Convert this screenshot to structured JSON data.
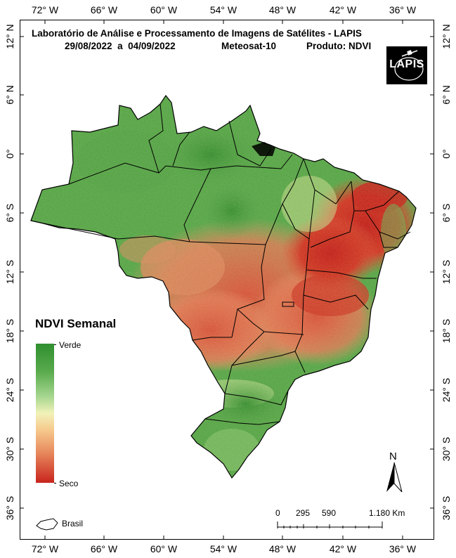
{
  "title": {
    "line1": "Laboratório de Análise e Processamento de Imagens de Satélites - LAPIS",
    "line2_dates": "29/08/2022  a  04/09/2022",
    "line2_sensor": "Meteosat-10",
    "line2_product": "Produto: NDVI"
  },
  "logo_text": "LAPIS",
  "lon_ticks": [
    "72° W",
    "66° W",
    "60° W",
    "54° W",
    "48° W",
    "42° W",
    "36° W"
  ],
  "lat_ticks": [
    "12° N",
    "6° N",
    "0°",
    "6° S",
    "12° S",
    "18° S",
    "24° S",
    "30° S",
    "36° S"
  ],
  "legend": {
    "title": "NDVI Semanal",
    "high_label": "Verde",
    "low_label": "Seco",
    "boundary_label": "Brasil"
  },
  "scale_bar": {
    "labels": [
      "0",
      "295",
      "590",
      "1.180 Km"
    ]
  },
  "north_arrow": "N"
}
